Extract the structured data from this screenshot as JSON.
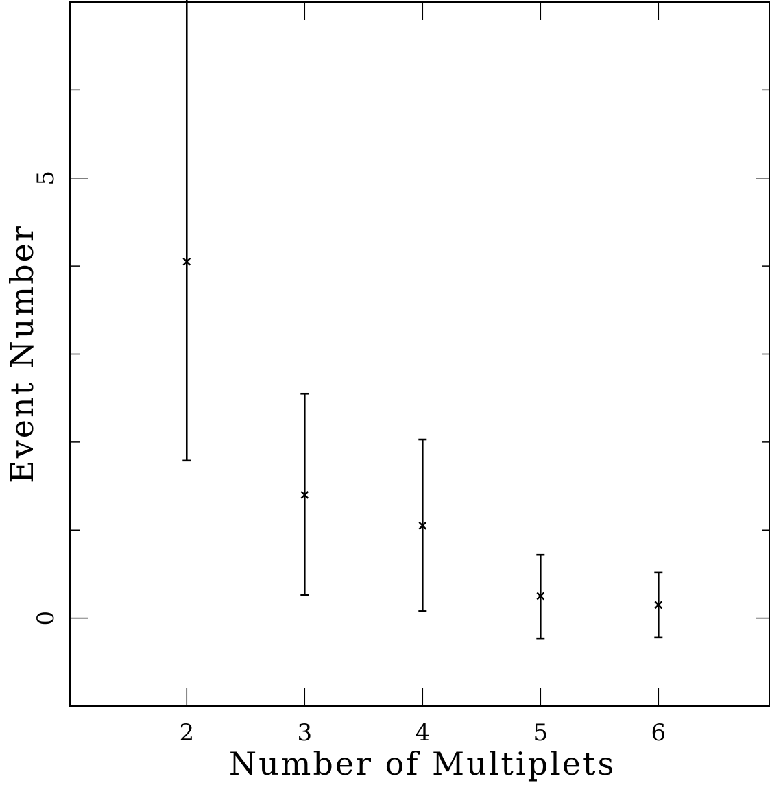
{
  "chart_data": {
    "type": "scatter",
    "title": "",
    "xlabel": "Number of Multiplets",
    "ylabel": "Event Number",
    "xlim": [
      1.01,
      6.94
    ],
    "ylim": [
      -1.0,
      7.0
    ],
    "x_ticks": [
      2,
      3,
      4,
      5,
      6
    ],
    "x_tick_labels": [
      "2",
      "3",
      "4",
      "5",
      "6"
    ],
    "y_ticks": [
      0,
      5
    ],
    "y_tick_labels": [
      "0",
      "5"
    ],
    "y_minor_ticks": [
      1,
      2,
      3,
      4,
      6
    ],
    "grid": false,
    "legend": "none",
    "marker": "x",
    "color": "#000000",
    "series": [
      {
        "points": [
          {
            "x": 2,
            "y": 4.05,
            "yerr_low": 1.79,
            "yerr_high": 7.89
          },
          {
            "x": 3,
            "y": 1.4,
            "yerr_low": 0.26,
            "yerr_high": 2.55
          },
          {
            "x": 4,
            "y": 1.05,
            "yerr_low": 0.08,
            "yerr_high": 2.03
          },
          {
            "x": 5,
            "y": 0.25,
            "yerr_low": -0.23,
            "yerr_high": 0.72
          },
          {
            "x": 6,
            "y": 0.15,
            "yerr_low": -0.22,
            "yerr_high": 0.52
          }
        ]
      }
    ]
  }
}
